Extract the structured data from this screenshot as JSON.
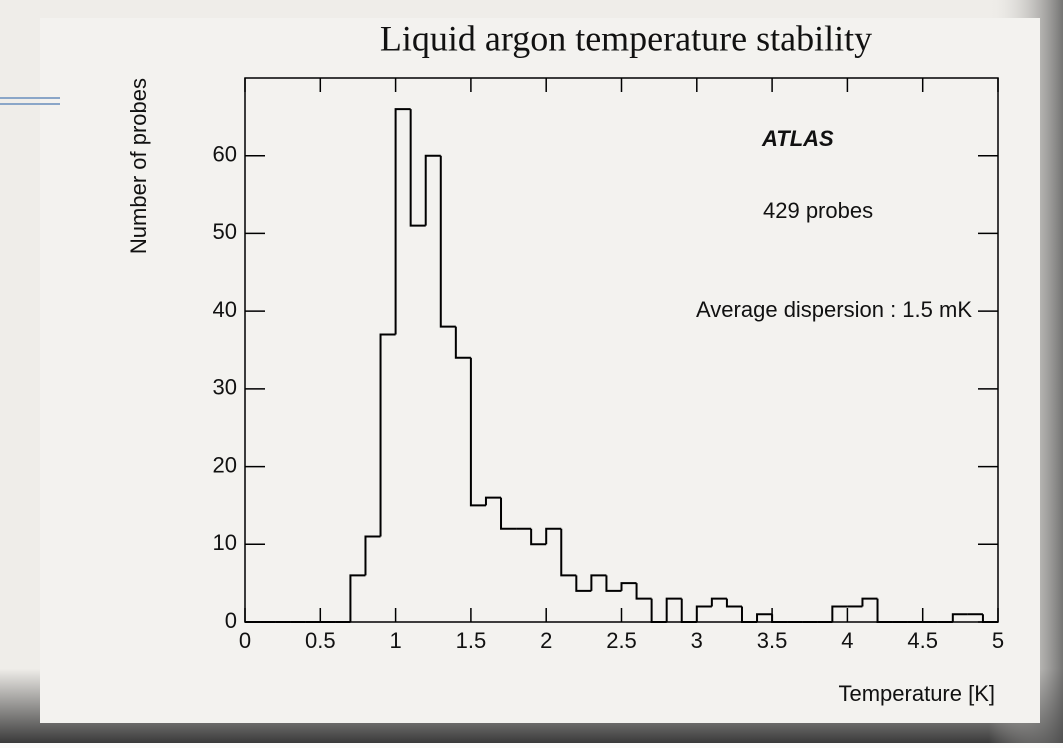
{
  "chart_data": {
    "type": "histogram",
    "title": "Liquid argon temperature stability",
    "x_label": "Temperature [K]",
    "y_label": "Number of probes",
    "annotations": [
      "ATLAS",
      "429 probes",
      "Average dispersion : 1.5 mK"
    ],
    "bins": [
      0,
      0.1,
      0.2,
      0.3,
      0.4,
      0.5,
      0.6,
      0.7,
      0.8,
      0.9,
      1,
      1.1,
      1.2,
      1.3,
      1.4,
      1.5,
      1.6,
      1.7,
      1.8,
      1.9,
      2,
      2.1,
      2.2,
      2.3,
      2.4,
      2.5,
      2.6,
      2.7,
      2.8,
      2.9,
      3,
      3.1,
      3.2,
      3.3,
      3.4,
      3.5,
      3.6,
      3.7,
      3.8,
      3.9,
      4,
      4.1,
      4.2,
      4.3,
      4.4,
      4.5,
      4.6,
      4.7,
      4.8,
      4.9,
      5
    ],
    "values": [
      0,
      0,
      0,
      0,
      0,
      0,
      0,
      6,
      11,
      37,
      66,
      51,
      60,
      38,
      34,
      15,
      16,
      12,
      12,
      10,
      12,
      6,
      4,
      6,
      4,
      5,
      3,
      0,
      3,
      0,
      2,
      3,
      2,
      0,
      1,
      0,
      0,
      0,
      0,
      2,
      2,
      3,
      0,
      0,
      0,
      0,
      0,
      1,
      1,
      0
    ],
    "color": "#000000",
    "xlim": [
      0,
      5
    ],
    "xticks": [
      0,
      0.5,
      1,
      1.5,
      2,
      2.5,
      3,
      3.5,
      4,
      4.5,
      5
    ],
    "ylim": [
      0,
      70
    ],
    "yticks": [
      0,
      10,
      20,
      30,
      40,
      50,
      60
    ]
  }
}
